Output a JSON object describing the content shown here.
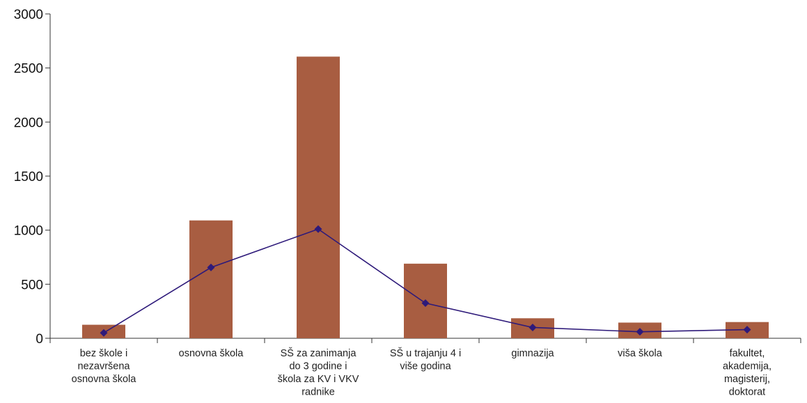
{
  "chart_data": {
    "type": "bar",
    "categories": [
      [
        "bez škole i",
        "nezavršena",
        "osnovna škola"
      ],
      [
        "osnovna škola"
      ],
      [
        "SŠ za zanimanja",
        "do 3 godine i",
        "škola za KV i VKV",
        "radnike"
      ],
      [
        "SŠ u trajanju 4 i",
        "više godina"
      ],
      [
        "gimnazija"
      ],
      [
        "viša škola"
      ],
      [
        "fakultet,",
        "akademija,",
        "magisterij,",
        "doktorat"
      ]
    ],
    "series": [
      {
        "type": "bar",
        "values": [
          125,
          1090,
          2605,
          690,
          185,
          145,
          150
        ],
        "color": "#a85d41"
      },
      {
        "type": "line",
        "values": [
          50,
          655,
          1010,
          325,
          100,
          60,
          80
        ],
        "color": "#2e1a7a"
      }
    ],
    "yticks": [
      0,
      500,
      1000,
      1500,
      2000,
      2500,
      3000
    ],
    "ylim": [
      0,
      3000
    ],
    "title": "",
    "xlabel": "",
    "ylabel": ""
  }
}
